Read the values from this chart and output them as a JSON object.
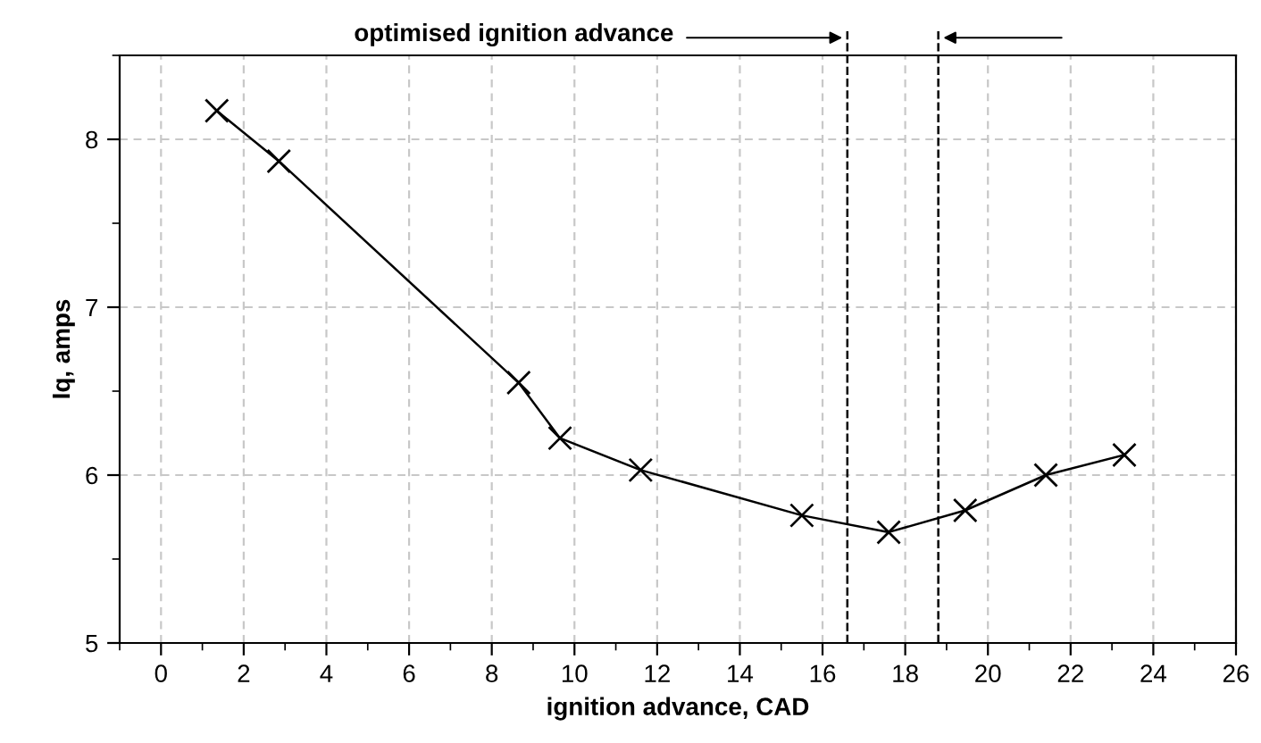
{
  "chart_data": {
    "type": "line",
    "xlabel": "ignition advance, CAD",
    "ylabel": "Iq, amps",
    "x": [
      1.35,
      2.85,
      8.65,
      9.65,
      11.6,
      15.5,
      17.6,
      19.45,
      21.4,
      23.3
    ],
    "series": [
      {
        "color": "#000000",
        "values": [
          8.17,
          7.87,
          6.55,
          6.22,
          6.03,
          5.76,
          5.66,
          5.79,
          6.0,
          6.12
        ]
      }
    ],
    "marker": "cross",
    "line_style": "solid",
    "grid": true,
    "xlim": [
      -1,
      26
    ],
    "xticks": [
      0,
      2,
      4,
      6,
      8,
      10,
      12,
      14,
      16,
      18,
      20,
      22,
      24,
      26
    ],
    "ylim": [
      5,
      8.5
    ],
    "yticks": [
      5,
      6,
      7,
      8
    ],
    "ref_lines": [
      {
        "axis": "x",
        "value": 16.6,
        "line_style": "dashed",
        "color": "#000000"
      },
      {
        "axis": "x",
        "value": 18.8,
        "line_style": "dashed",
        "color": "#000000"
      }
    ],
    "annotations": [
      "optimised ignition advance"
    ]
  }
}
